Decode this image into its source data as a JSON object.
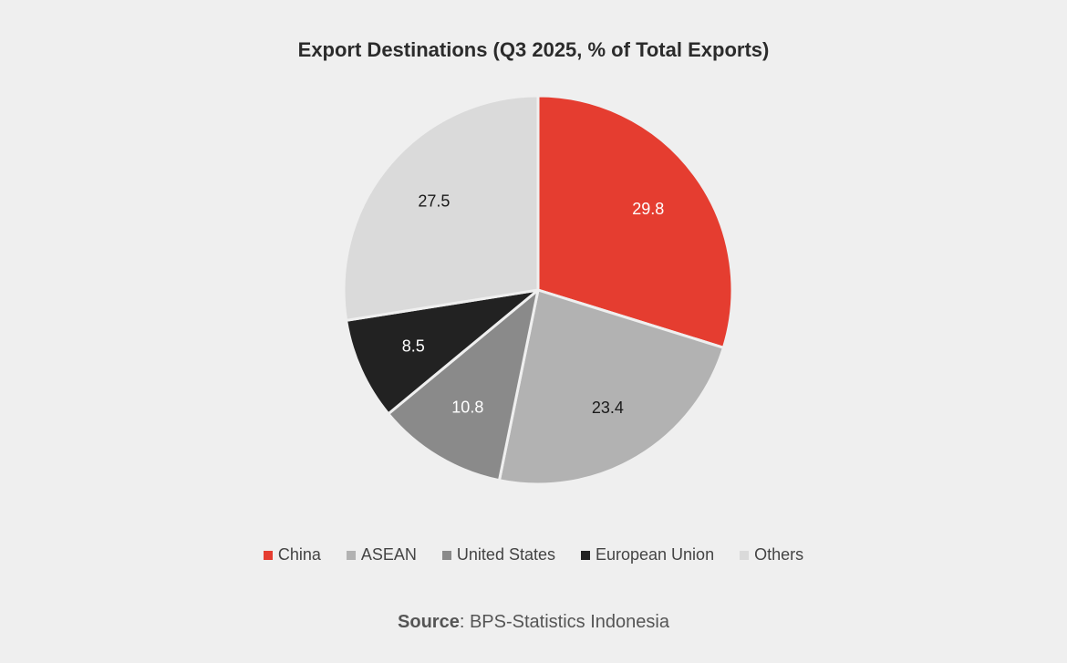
{
  "chart_data": {
    "type": "pie",
    "title": "Export Destinations (Q3 2025, % of Total Exports)",
    "categories": [
      "China",
      "ASEAN",
      "United States",
      "European Union",
      "Others"
    ],
    "values": [
      29.8,
      23.4,
      10.8,
      8.5,
      27.5
    ],
    "colors": [
      "#e53d30",
      "#b2b2b2",
      "#8a8a8a",
      "#222222",
      "#dadada"
    ],
    "label_colors": [
      "#ffffff",
      "#1a1a1a",
      "#ffffff",
      "#ffffff",
      "#1a1a1a"
    ],
    "start_angle": "12 o'clock",
    "direction": "clockwise",
    "legend_position": "bottom",
    "unit": "% of total exports"
  },
  "title": "Export Destinations (Q3 2025, % of Total Exports)",
  "source": {
    "label": "Source",
    "text": ": BPS-Statistics Indonesia"
  }
}
